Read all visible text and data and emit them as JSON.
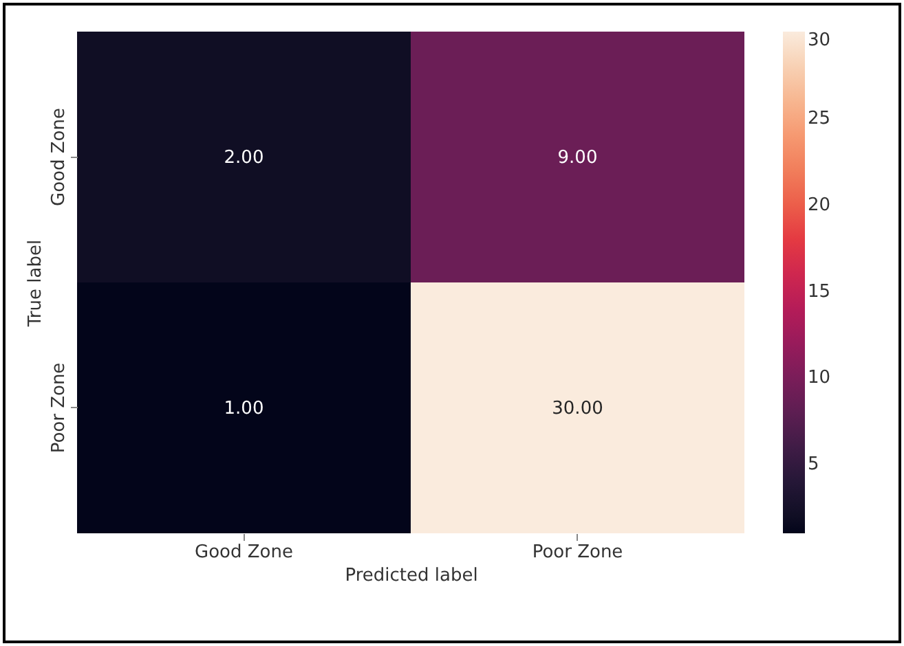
{
  "chart_data": {
    "type": "heatmap",
    "xlabel": "Predicted label",
    "ylabel": "True label",
    "categories": [
      "Good Zone",
      "Poor Zone"
    ],
    "y_categories": [
      "Good Zone",
      "Poor Zone"
    ],
    "cells": [
      [
        2,
        9
      ],
      [
        1,
        30
      ]
    ],
    "cell_labels": [
      [
        "2.00",
        "9.00"
      ],
      [
        "1.00",
        "30.00"
      ]
    ],
    "clim": [
      1,
      30
    ],
    "cticks": [
      5,
      10,
      15,
      20,
      25,
      30
    ]
  }
}
